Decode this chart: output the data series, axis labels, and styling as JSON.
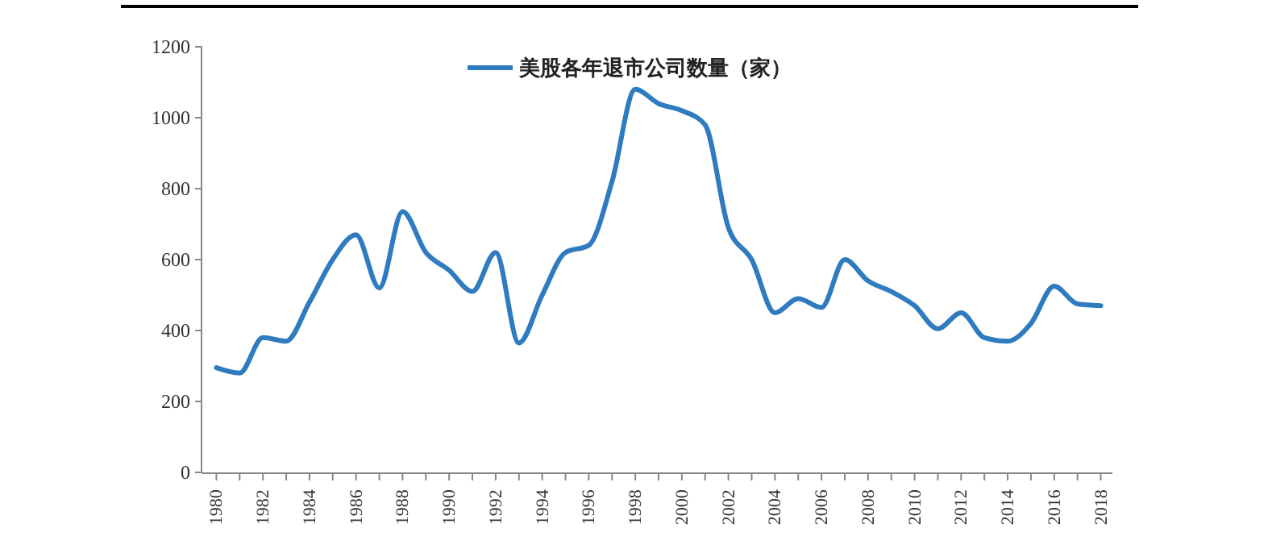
{
  "chart_data": {
    "type": "line",
    "x": [
      1980,
      1981,
      1982,
      1983,
      1984,
      1985,
      1986,
      1987,
      1988,
      1989,
      1990,
      1991,
      1992,
      1993,
      1994,
      1995,
      1996,
      1997,
      1998,
      1999,
      2000,
      2001,
      2002,
      2003,
      2004,
      2005,
      2006,
      2007,
      2008,
      2009,
      2010,
      2011,
      2012,
      2013,
      2014,
      2015,
      2016,
      2017,
      2018
    ],
    "series": [
      {
        "name": "美股各年退市公司数量（家）",
        "color": "#2f7bc0",
        "values": [
          295,
          280,
          380,
          370,
          480,
          600,
          670,
          520,
          735,
          620,
          570,
          510,
          620,
          365,
          500,
          620,
          640,
          820,
          1080,
          1040,
          1020,
          980,
          690,
          600,
          450,
          490,
          465,
          600,
          540,
          510,
          470,
          405,
          450,
          380,
          370,
          420,
          525,
          475,
          470
        ]
      }
    ],
    "xlim": [
      1979.5,
      2018.5
    ],
    "xticks": [
      1980,
      {
        "value": 1981,
        "label": null
      },
      1982,
      {
        "value": 1983,
        "label": null
      },
      1984,
      {
        "value": 1985,
        "label": null
      },
      1986,
      {
        "value": 1987,
        "label": null
      },
      1988,
      {
        "value": 1989,
        "label": null
      },
      1990,
      {
        "value": 1991,
        "label": null
      },
      1992,
      {
        "value": 1993,
        "label": null
      },
      1994,
      {
        "value": 1995,
        "label": null
      },
      1996,
      {
        "value": 1997,
        "label": null
      },
      1998,
      {
        "value": 1999,
        "label": null
      },
      2000,
      {
        "value": 2001,
        "label": null
      },
      2002,
      {
        "value": 2003,
        "label": null
      },
      2004,
      {
        "value": 2005,
        "label": null
      },
      2006,
      {
        "value": 2007,
        "label": null
      },
      2008,
      {
        "value": 2009,
        "label": null
      },
      2010,
      {
        "value": 2011,
        "label": null
      },
      2012,
      {
        "value": 2013,
        "label": null
      },
      2014,
      {
        "value": 2015,
        "label": null
      },
      2016,
      {
        "value": 2017,
        "label": null
      },
      2018
    ],
    "ylim": [
      0,
      1200
    ],
    "yticks": [
      0,
      200,
      400,
      600,
      800,
      1000,
      1200
    ],
    "legend": "top",
    "grid": false,
    "marker": "none",
    "line_style": "solid"
  }
}
